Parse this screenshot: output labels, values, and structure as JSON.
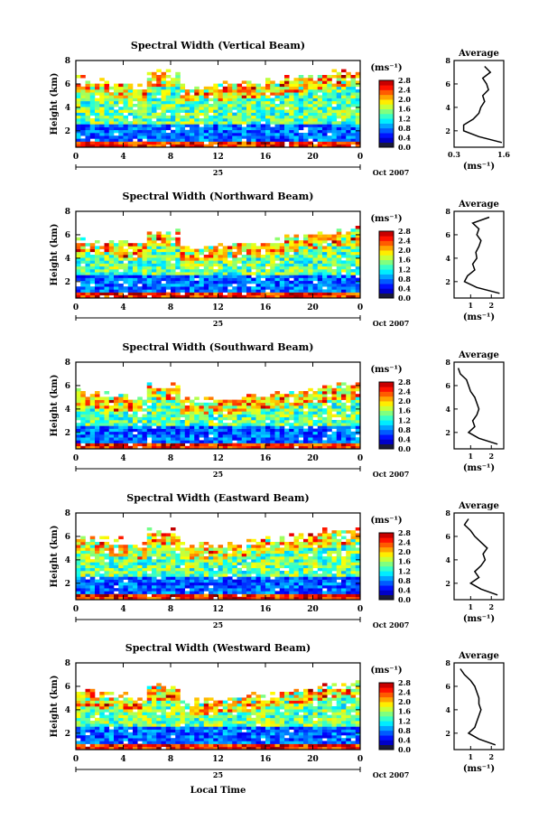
{
  "figure": {
    "xlabel": "Local Time",
    "date_day": "25",
    "date_month": "Oct 2007",
    "colorbar_unit": "(ms⁻¹)",
    "colorbar_ticks": [
      "0.0",
      "0.4",
      "0.8",
      "1.2",
      "1.6",
      "2.0",
      "2.4",
      "2.8"
    ],
    "avg_title": "Average",
    "avg_xlabel": "(ms⁻¹)",
    "ylabel": "Height (km)"
  },
  "chart_data": [
    {
      "type": "heatmap",
      "title": "Spectral Width (Vertical Beam)",
      "xlabel": "Local Time",
      "ylabel": "Height (km)",
      "x_ticks": [
        "0",
        "4",
        "8",
        "12",
        "16",
        "20",
        "0"
      ],
      "xlim": [
        0,
        24
      ],
      "y_ticks": [
        "2",
        "4",
        "6",
        "8"
      ],
      "ylim": [
        0.6,
        8.0
      ],
      "colorbar": {
        "label": "(ms⁻¹)",
        "range": [
          0.0,
          2.8
        ],
        "colormap": "jet"
      },
      "top_km": 6.5,
      "cell_value": 0.8,
      "average_profile": {
        "title": "Average",
        "xlabel": "(ms⁻¹)",
        "x_ticks": [
          "0.3",
          "1.6"
        ],
        "xlim": [
          0.3,
          1.6
        ],
        "ylim": [
          0.6,
          8.0
        ],
        "height": [
          1.0,
          1.5,
          2.0,
          2.5,
          3.0,
          3.5,
          4.0,
          4.5,
          5.0,
          5.5,
          6.0,
          6.5,
          7.0,
          7.5
        ],
        "values": [
          1.55,
          0.95,
          0.55,
          0.55,
          0.8,
          0.95,
          1.0,
          1.1,
          1.05,
          1.2,
          1.15,
          1.05,
          1.25,
          1.1
        ]
      }
    },
    {
      "type": "heatmap",
      "title": "Spectral Width (Northward Beam)",
      "xlabel": "Local Time",
      "ylabel": "Height (km)",
      "x_ticks": [
        "0",
        "4",
        "8",
        "12",
        "16",
        "20",
        "0"
      ],
      "xlim": [
        0,
        24
      ],
      "y_ticks": [
        "2",
        "4",
        "6",
        "8"
      ],
      "ylim": [
        0.6,
        8.0
      ],
      "colorbar": {
        "label": "(ms⁻¹)",
        "range": [
          0.0,
          2.8
        ],
        "colormap": "jet"
      },
      "top_km": 5.7,
      "cell_value": 1.0,
      "average_profile": {
        "title": "Average",
        "xlabel": "(ms⁻¹)",
        "x_ticks": [
          "1",
          "2"
        ],
        "xlim": [
          0.2,
          2.6
        ],
        "ylim": [
          0.6,
          8.0
        ],
        "height": [
          1.0,
          1.5,
          2.0,
          2.5,
          3.0,
          3.5,
          4.0,
          4.5,
          5.0,
          5.5,
          6.0,
          6.5,
          7.0,
          7.5
        ],
        "values": [
          2.4,
          1.3,
          0.7,
          0.85,
          1.2,
          1.1,
          1.3,
          1.25,
          1.4,
          1.5,
          1.3,
          1.4,
          1.1,
          1.9
        ]
      }
    },
    {
      "type": "heatmap",
      "title": "Spectral Width (Southward Beam)",
      "xlabel": "Local Time",
      "ylabel": "Height (km)",
      "x_ticks": [
        "0",
        "4",
        "8",
        "12",
        "16",
        "20",
        "0"
      ],
      "xlim": [
        0,
        24
      ],
      "y_ticks": [
        "2",
        "4",
        "6",
        "8"
      ],
      "ylim": [
        0.6,
        8.0
      ],
      "colorbar": {
        "label": "(ms⁻¹)",
        "range": [
          0.0,
          2.8
        ],
        "colormap": "jet"
      },
      "top_km": 5.5,
      "cell_value": 1.1,
      "average_profile": {
        "title": "Average",
        "xlabel": "(ms⁻¹)",
        "x_ticks": [
          "1",
          "2"
        ],
        "xlim": [
          0.2,
          2.6
        ],
        "ylim": [
          0.6,
          8.0
        ],
        "height": [
          1.0,
          1.5,
          2.0,
          2.5,
          3.0,
          3.5,
          4.0,
          4.5,
          5.0,
          5.5,
          6.0,
          6.5,
          7.0,
          7.5
        ],
        "values": [
          2.3,
          1.4,
          0.9,
          1.2,
          1.1,
          1.3,
          1.4,
          1.3,
          1.2,
          1.0,
          0.9,
          0.8,
          0.5,
          0.4
        ]
      }
    },
    {
      "type": "heatmap",
      "title": "Spectral Width (Eastward Beam)",
      "xlabel": "Local Time",
      "ylabel": "Height (km)",
      "x_ticks": [
        "0",
        "4",
        "8",
        "12",
        "16",
        "20",
        "0"
      ],
      "xlim": [
        0,
        24
      ],
      "y_ticks": [
        "2",
        "4",
        "6",
        "8"
      ],
      "ylim": [
        0.6,
        8.0
      ],
      "colorbar": {
        "label": "(ms⁻¹)",
        "range": [
          0.0,
          2.8
        ],
        "colormap": "jet"
      },
      "top_km": 6.0,
      "cell_value": 1.1,
      "average_profile": {
        "title": "Average",
        "xlabel": "(ms⁻¹)",
        "x_ticks": [
          "1",
          "2"
        ],
        "xlim": [
          0.2,
          2.6
        ],
        "ylim": [
          0.6,
          8.0
        ],
        "height": [
          1.0,
          1.5,
          2.0,
          2.5,
          3.0,
          3.5,
          4.0,
          4.5,
          5.0,
          5.5,
          6.0,
          6.5,
          7.0,
          7.5
        ],
        "values": [
          2.3,
          1.5,
          1.0,
          1.4,
          1.2,
          1.5,
          1.7,
          1.6,
          1.8,
          1.5,
          1.2,
          1.0,
          0.7,
          0.9
        ]
      }
    },
    {
      "type": "heatmap",
      "title": "Spectral Width (Westward Beam)",
      "xlabel": "Local Time",
      "ylabel": "Height (km)",
      "x_ticks": [
        "0",
        "4",
        "8",
        "12",
        "16",
        "20",
        "0"
      ],
      "xlim": [
        0,
        24
      ],
      "y_ticks": [
        "2",
        "4",
        "6",
        "8"
      ],
      "ylim": [
        0.6,
        8.0
      ],
      "colorbar": {
        "label": "(ms⁻¹)",
        "range": [
          0.0,
          2.8
        ],
        "colormap": "jet"
      },
      "top_km": 5.6,
      "cell_value": 1.0,
      "average_profile": {
        "title": "Average",
        "xlabel": "(ms⁻¹)",
        "x_ticks": [
          "1",
          "2"
        ],
        "xlim": [
          0.2,
          2.6
        ],
        "ylim": [
          0.6,
          8.0
        ],
        "height": [
          1.0,
          1.5,
          2.0,
          2.5,
          3.0,
          3.5,
          4.0,
          4.5,
          5.0,
          5.5,
          6.0,
          6.5,
          7.0,
          7.5
        ],
        "values": [
          2.2,
          1.4,
          0.9,
          1.2,
          1.3,
          1.4,
          1.5,
          1.4,
          1.4,
          1.3,
          1.2,
          1.0,
          0.7,
          0.5
        ]
      }
    }
  ]
}
